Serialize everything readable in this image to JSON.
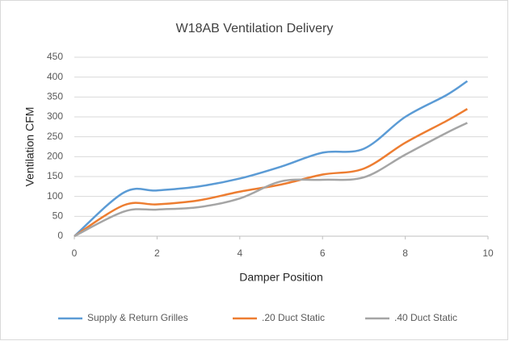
{
  "chart_data": {
    "type": "line",
    "title": "W18AB Ventilation Delivery",
    "x_label": "Damper Position",
    "y_label": "Ventilation CFM",
    "x": [
      0,
      1.2,
      2,
      3,
      4,
      5,
      6,
      7,
      8,
      9,
      9.5
    ],
    "series": [
      {
        "name": "Supply & Return Grilles",
        "color": "#5b9bd5",
        "values": [
          0,
          110,
          115,
          125,
          145,
          175,
          210,
          220,
          300,
          355,
          390
        ]
      },
      {
        "name": ".20 Duct Static",
        "color": "#ed7d31",
        "values": [
          0,
          78,
          80,
          90,
          112,
          130,
          155,
          170,
          235,
          290,
          320
        ]
      },
      {
        "name": ".40 Duct Static",
        "color": "#a5a5a5",
        "values": [
          0,
          62,
          67,
          73,
          95,
          138,
          142,
          148,
          205,
          260,
          285
        ]
      }
    ],
    "xlim": [
      0,
      10
    ],
    "xticks": [
      0,
      2,
      4,
      6,
      8,
      10
    ],
    "ylim": [
      0,
      450
    ],
    "yticks": [
      0,
      50,
      100,
      150,
      200,
      250,
      300,
      350,
      400,
      450
    ],
    "grid": true,
    "legend": "bottom"
  }
}
